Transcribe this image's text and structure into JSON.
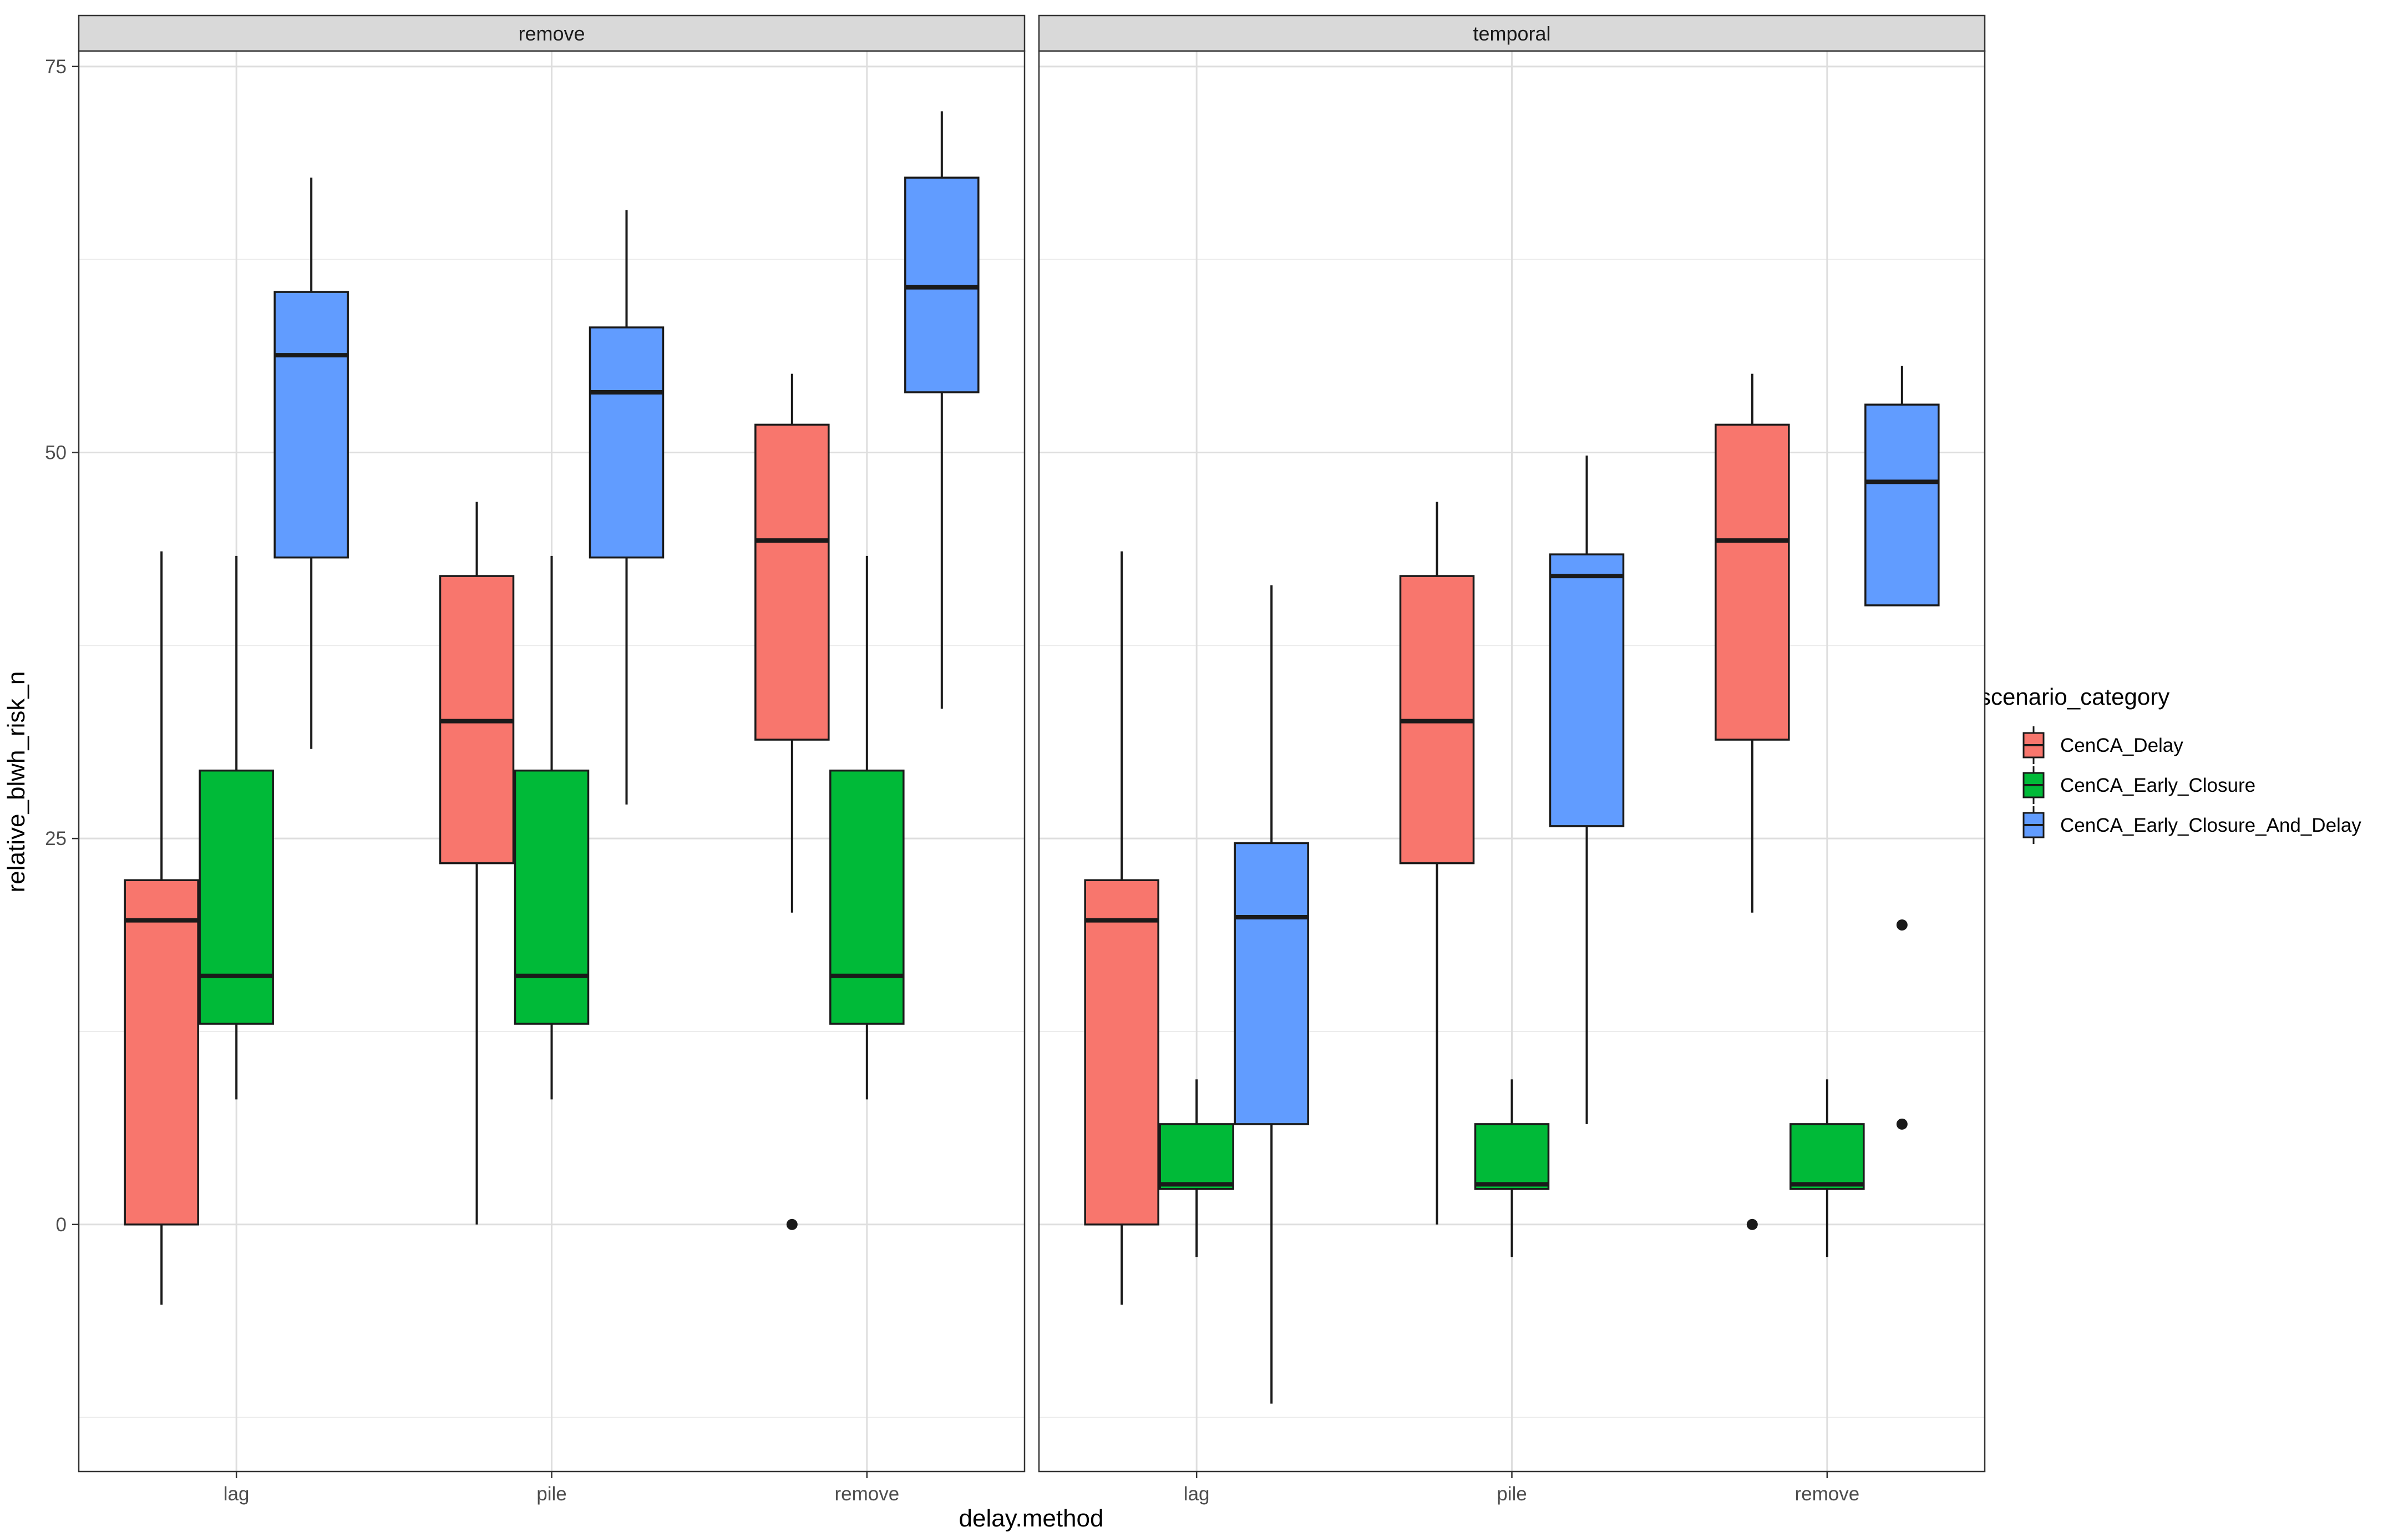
{
  "chart_data": {
    "type": "boxplot",
    "xlabel": "delay.method",
    "ylabel": "relative_blwh_risk_n",
    "ylim": [
      -16,
      76
    ],
    "y_ticks": [
      0,
      25,
      50,
      75
    ],
    "y_tick_labels": [
      "0",
      "25",
      "50",
      "75"
    ],
    "categories": [
      "lag",
      "pile",
      "remove"
    ],
    "grid": true,
    "legend": {
      "title": "scenario_category",
      "placement": "right",
      "items": [
        {
          "name": "CenCA_Delay",
          "color": "#F8766D"
        },
        {
          "name": "CenCA_Early_Closure",
          "color": "#00BA38"
        },
        {
          "name": "CenCA_Early_Closure_And_Delay",
          "color": "#619CFF"
        }
      ]
    },
    "panels": [
      {
        "title": "remove",
        "groups": [
          {
            "category": "lag",
            "series": "CenCA_Delay",
            "min": -5.2,
            "q1": 0,
            "median": 19.7,
            "q3": 22.3,
            "max": 43.6,
            "outliers": []
          },
          {
            "category": "lag",
            "series": "CenCA_Early_Closure",
            "min": 8.1,
            "q1": 13,
            "median": 16.1,
            "q3": 29.4,
            "max": 43.3,
            "outliers": []
          },
          {
            "category": "lag",
            "series": "CenCA_Early_Closure_And_Delay",
            "min": 30.8,
            "q1": 43.2,
            "median": 56.3,
            "q3": 60.4,
            "max": 67.8,
            "outliers": []
          },
          {
            "category": "pile",
            "series": "CenCA_Delay",
            "min": 0,
            "q1": 23.4,
            "median": 32.6,
            "q3": 42,
            "max": 46.8,
            "outliers": []
          },
          {
            "category": "pile",
            "series": "CenCA_Early_Closure",
            "min": 8.1,
            "q1": 13,
            "median": 16.1,
            "q3": 29.4,
            "max": 43.3,
            "outliers": []
          },
          {
            "category": "pile",
            "series": "CenCA_Early_Closure_And_Delay",
            "min": 27.2,
            "q1": 43.2,
            "median": 53.9,
            "q3": 58.1,
            "max": 65.7,
            "outliers": []
          },
          {
            "category": "remove",
            "series": "CenCA_Delay",
            "min": 20.2,
            "q1": 31.4,
            "median": 44.3,
            "q3": 51.8,
            "max": 55.1,
            "outliers": [
              0
            ]
          },
          {
            "category": "remove",
            "series": "CenCA_Early_Closure",
            "min": 8.1,
            "q1": 13,
            "median": 16.1,
            "q3": 29.4,
            "max": 43.3,
            "outliers": []
          },
          {
            "category": "remove",
            "series": "CenCA_Early_Closure_And_Delay",
            "min": 33.4,
            "q1": 53.9,
            "median": 60.7,
            "q3": 67.8,
            "max": 72.1,
            "outliers": []
          }
        ]
      },
      {
        "title": "temporal",
        "groups": [
          {
            "category": "lag",
            "series": "CenCA_Delay",
            "min": -5.2,
            "q1": 0,
            "median": 19.7,
            "q3": 22.3,
            "max": 43.6,
            "outliers": []
          },
          {
            "category": "lag",
            "series": "CenCA_Early_Closure",
            "min": -2.1,
            "q1": 2.3,
            "median": 2.6,
            "q3": 6.5,
            "max": 9.4,
            "outliers": []
          },
          {
            "category": "lag",
            "series": "CenCA_Early_Closure_And_Delay",
            "min": -11.6,
            "q1": 6.5,
            "median": 19.9,
            "q3": 24.7,
            "max": 41.4,
            "outliers": []
          },
          {
            "category": "pile",
            "series": "CenCA_Delay",
            "min": 0,
            "q1": 23.4,
            "median": 32.6,
            "q3": 42,
            "max": 46.8,
            "outliers": []
          },
          {
            "category": "pile",
            "series": "CenCA_Early_Closure",
            "min": -2.1,
            "q1": 2.3,
            "median": 2.6,
            "q3": 6.5,
            "max": 9.4,
            "outliers": []
          },
          {
            "category": "pile",
            "series": "CenCA_Early_Closure_And_Delay",
            "min": 6.5,
            "q1": 25.8,
            "median": 42,
            "q3": 43.4,
            "max": 49.8,
            "outliers": []
          },
          {
            "category": "remove",
            "series": "CenCA_Delay",
            "min": 20.2,
            "q1": 31.4,
            "median": 44.3,
            "q3": 51.8,
            "max": 55.1,
            "outliers": [
              0
            ]
          },
          {
            "category": "remove",
            "series": "CenCA_Early_Closure",
            "min": -2.1,
            "q1": 2.3,
            "median": 2.6,
            "q3": 6.5,
            "max": 9.4,
            "outliers": []
          },
          {
            "category": "remove",
            "series": "CenCA_Early_Closure_And_Delay",
            "min": 40.1,
            "q1": 40.1,
            "median": 48.1,
            "q3": 53.1,
            "max": 55.6,
            "outliers": [
              6.5,
              19.4
            ]
          }
        ]
      }
    ]
  }
}
